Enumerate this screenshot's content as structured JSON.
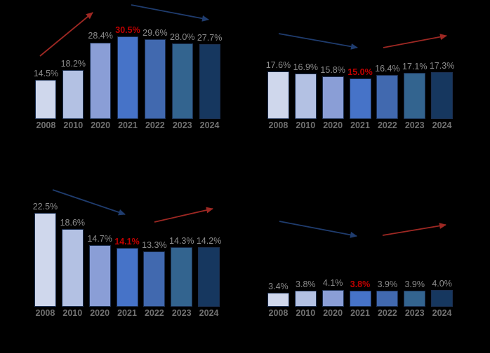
{
  "page": {
    "background": "#000000"
  },
  "palette": {
    "bars": [
      "#cfd7ec",
      "#b3c1e3",
      "#8a9ed6",
      "#4673c8",
      "#4169af",
      "#33648f",
      "#16375f"
    ],
    "bar_border": "#1b2e4f",
    "value_label": "#8c8c8c",
    "highlight": "#c00000",
    "year_label": "#717171",
    "arrow_red": "#9e2823",
    "arrow_blue": "#1f3c6e"
  },
  "chart_data": [
    {
      "id": "top_left",
      "type": "bar",
      "categories": [
        "2008",
        "2010",
        "2020",
        "2021",
        "2022",
        "2023",
        "2024"
      ],
      "values": [
        14.5,
        18.2,
        28.4,
        30.5,
        29.6,
        28.0,
        27.7
      ],
      "value_labels": [
        "14.5%",
        "18.2%",
        "28.4%",
        "30.5%",
        "29.6%",
        "28.0%",
        "27.7%"
      ],
      "highlight_index": 3,
      "ylim": [
        0,
        35
      ],
      "grid": false,
      "legend": "none",
      "annotations": [
        {
          "type": "arrow",
          "color": "red",
          "from": [
            57,
            80
          ],
          "to": [
            132,
            18
          ]
        },
        {
          "type": "arrow",
          "color": "blue",
          "from": [
            187,
            7
          ],
          "to": [
            297,
            28
          ]
        }
      ]
    },
    {
      "id": "top_right",
      "type": "bar",
      "categories": [
        "2008",
        "2010",
        "2020",
        "2021",
        "2022",
        "2023",
        "2024"
      ],
      "values": [
        17.6,
        16.9,
        15.8,
        15.0,
        16.4,
        17.1,
        17.3
      ],
      "value_labels": [
        "17.6%",
        "16.9%",
        "15.8%",
        "15.0%",
        "16.4%",
        "17.1%",
        "17.3%"
      ],
      "highlight_index": 3,
      "ylim": [
        0,
        35
      ],
      "grid": false,
      "legend": "none",
      "annotations": [
        {
          "type": "arrow",
          "color": "blue",
          "from": [
            397,
            48
          ],
          "to": [
            509,
            68
          ]
        },
        {
          "type": "arrow",
          "color": "red",
          "from": [
            546,
            68
          ],
          "to": [
            636,
            51
          ]
        }
      ]
    },
    {
      "id": "bottom_left",
      "type": "bar",
      "categories": [
        "2008",
        "2010",
        "2020",
        "2021",
        "2022",
        "2023",
        "2024"
      ],
      "values": [
        22.5,
        18.6,
        14.7,
        14.1,
        13.3,
        14.3,
        14.2
      ],
      "value_labels": [
        "22.5%",
        "18.6%",
        "14.7%",
        "14.1%",
        "13.3%",
        "14.3%",
        "14.2%"
      ],
      "highlight_index": 3,
      "ylim": [
        0,
        24
      ],
      "grid": false,
      "legend": "none",
      "annotations": [
        {
          "type": "arrow",
          "color": "blue",
          "from": [
            75,
            271
          ],
          "to": [
            178,
            306
          ]
        },
        {
          "type": "arrow",
          "color": "red",
          "from": [
            220,
            317
          ],
          "to": [
            303,
            298
          ]
        }
      ]
    },
    {
      "id": "bottom_right",
      "type": "bar",
      "categories": [
        "2008",
        "2010",
        "2020",
        "2021",
        "2022",
        "2023",
        "2024"
      ],
      "values": [
        3.4,
        3.8,
        4.1,
        3.8,
        3.9,
        3.9,
        4.0
      ],
      "value_labels": [
        "3.4%",
        "3.8%",
        "4.1%",
        "3.8%",
        "3.9%",
        "3.9%",
        "4.0%"
      ],
      "highlight_index": 3,
      "ylim": [
        0,
        24
      ],
      "grid": false,
      "legend": "none",
      "annotations": [
        {
          "type": "arrow",
          "color": "blue",
          "from": [
            398,
            316
          ],
          "to": [
            508,
            337
          ]
        },
        {
          "type": "arrow",
          "color": "red",
          "from": [
            545,
            336
          ],
          "to": [
            635,
            321
          ]
        }
      ]
    }
  ]
}
